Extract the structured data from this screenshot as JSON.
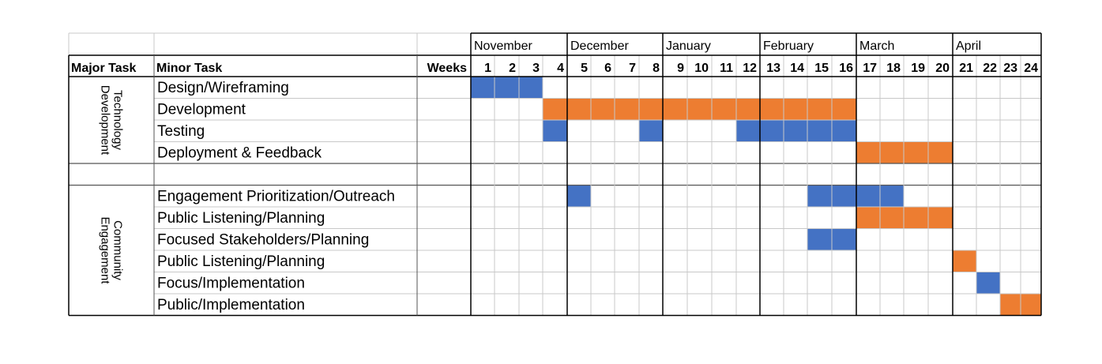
{
  "chart_data": {
    "type": "gantt",
    "title": "",
    "columns": {
      "major": "Major Task",
      "minor": "Minor Task",
      "weeks": "Weeks"
    },
    "months": [
      {
        "label": "November",
        "start": 1,
        "end": 4
      },
      {
        "label": "December",
        "start": 5,
        "end": 8
      },
      {
        "label": "January",
        "start": 9,
        "end": 12
      },
      {
        "label": "February",
        "start": 13,
        "end": 16
      },
      {
        "label": "March",
        "start": 17,
        "end": 20
      },
      {
        "label": "April",
        "start": 21,
        "end": 24
      }
    ],
    "weeks": [
      "1",
      "2",
      "3",
      "4",
      "5",
      "6",
      "7",
      "8",
      "9",
      "10",
      "11",
      "12",
      "13",
      "14",
      "15",
      "16",
      "17",
      "18",
      "19",
      "20",
      "21",
      "22",
      "23",
      "24"
    ],
    "colors": {
      "blue": "#4472C4",
      "orange": "#ED7D31"
    },
    "groups": [
      {
        "major": [
          "Technology",
          "Development"
        ],
        "tasks": [
          {
            "name": "Design/Wireframing",
            "bars": [
              {
                "start": 1,
                "end": 3,
                "color": "blue"
              }
            ]
          },
          {
            "name": "Development",
            "bars": [
              {
                "start": 4,
                "end": 16,
                "color": "orange"
              }
            ]
          },
          {
            "name": "Testing",
            "bars": [
              {
                "start": 4,
                "end": 4,
                "color": "blue"
              },
              {
                "start": 8,
                "end": 8,
                "color": "blue"
              },
              {
                "start": 12,
                "end": 16,
                "color": "blue"
              }
            ]
          },
          {
            "name": "Deployment & Feedback",
            "bars": [
              {
                "start": 17,
                "end": 20,
                "color": "orange"
              }
            ]
          }
        ]
      },
      {
        "major": [
          "Community",
          "Engagement"
        ],
        "tasks": [
          {
            "name": "Engagement Prioritization/Outreach",
            "bars": [
              {
                "start": 5,
                "end": 5,
                "color": "blue"
              },
              {
                "start": 15,
                "end": 18,
                "color": "blue"
              }
            ]
          },
          {
            "name": "Public Listening/Planning",
            "bars": [
              {
                "start": 17,
                "end": 20,
                "color": "orange"
              }
            ]
          },
          {
            "name": "Focused Stakeholders/Planning",
            "bars": [
              {
                "start": 15,
                "end": 16,
                "color": "blue"
              }
            ]
          },
          {
            "name": "Public Listening/Planning",
            "bars": [
              {
                "start": 21,
                "end": 21,
                "color": "orange"
              }
            ]
          },
          {
            "name": "Focus/Implementation",
            "bars": [
              {
                "start": 22,
                "end": 22,
                "color": "blue"
              }
            ]
          },
          {
            "name": "Public/Implementation",
            "bars": [
              {
                "start": 23,
                "end": 24,
                "color": "orange"
              }
            ]
          }
        ]
      }
    ]
  }
}
